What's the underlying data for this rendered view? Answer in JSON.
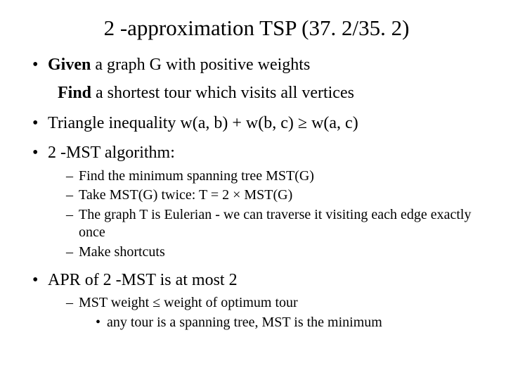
{
  "title": "2 -approximation TSP (37. 2/35. 2)",
  "bullets": [
    {
      "line1_a": "Given",
      "line1_b": " a graph G with positive weights",
      "line2_a": "Find",
      "line2_b": " a shortest tour which visits all vertices"
    },
    {
      "text": "Triangle inequality w(a, b) + w(b, c) ≥ w(a, c)"
    },
    {
      "text": "2 -MST algorithm:",
      "sub": [
        "Find the minimum spanning tree  MST(G)",
        "Take MST(G) twice: T = 2 × MST(G)",
        "The graph T is Eulerian - we can traverse it visiting each edge exactly once",
        "Make shortcuts"
      ]
    },
    {
      "text": "APR of 2 -MST is at most 2",
      "sub": [
        "MST weight ≤  weight of optimum tour"
      ],
      "subsub": [
        "any tour is a spanning tree, MST is the minimum"
      ]
    }
  ]
}
